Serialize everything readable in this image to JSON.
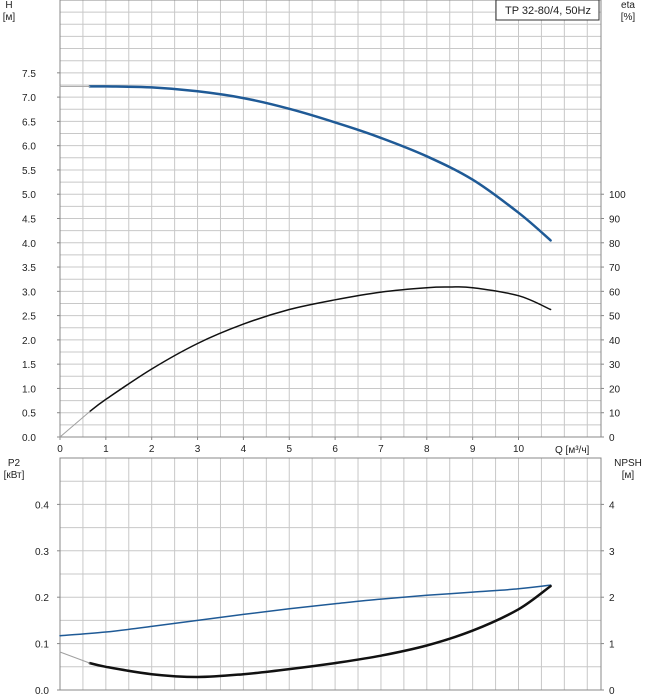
{
  "title": "TP 32-80/4, 50Hz",
  "colors": {
    "grid": "#c8c8c8",
    "axis": "#888888",
    "blue": "#1f5a96",
    "black": "#111111",
    "grey": "#a0a0a0"
  },
  "top_chart": {
    "left_axis": {
      "label": "H",
      "unit": "[м]",
      "ticks": [
        "0.0",
        "0.5",
        "1.0",
        "1.5",
        "2.0",
        "2.5",
        "3.0",
        "3.5",
        "4.0",
        "4.5",
        "5.0",
        "5.5",
        "6.0",
        "6.5",
        "7.0",
        "7.5"
      ]
    },
    "right_axis": {
      "label": "eta",
      "unit": "[%]",
      "ticks": [
        "0",
        "10",
        "20",
        "30",
        "40",
        "50",
        "60",
        "70",
        "80",
        "90",
        "100"
      ]
    },
    "x_axis": {
      "unit": "Q [м³/ч]",
      "ticks": [
        "0",
        "1",
        "2",
        "3",
        "4",
        "5",
        "6",
        "7",
        "8",
        "9",
        "10"
      ]
    }
  },
  "bottom_chart": {
    "left_axis": {
      "label": "P2",
      "unit": "[кВт]",
      "ticks": [
        "0.0",
        "0.1",
        "0.2",
        "0.3",
        "0.4"
      ]
    },
    "right_axis": {
      "label": "NPSH",
      "unit": "[м]",
      "ticks": [
        "0",
        "1",
        "2",
        "3",
        "4"
      ]
    }
  },
  "chart_data": [
    {
      "type": "line",
      "title": "TP 32-80/4, 50Hz",
      "xlabel": "Q [м³/ч]",
      "ylabel": "H [м]",
      "y2label": "eta [%]",
      "xlim": [
        0,
        11.8
      ],
      "ylim": [
        0,
        9.0
      ],
      "y2lim": [
        0,
        100
      ],
      "grid": true,
      "series": [
        {
          "name": "H",
          "axis": "left",
          "color": "#1f5a96",
          "x": [
            0.65,
            1,
            2,
            3,
            4,
            5,
            6,
            7,
            8,
            9,
            10,
            10.7
          ],
          "y": [
            7.22,
            7.22,
            7.2,
            7.12,
            6.98,
            6.76,
            6.48,
            6.16,
            5.78,
            5.3,
            4.62,
            4.05
          ]
        },
        {
          "name": "H (extrapolated)",
          "axis": "left",
          "color": "#a0a0a0",
          "x": [
            0,
            0.65
          ],
          "y": [
            7.22,
            7.22
          ]
        },
        {
          "name": "eta",
          "axis": "right",
          "color": "#111111",
          "x": [
            0.65,
            1,
            2,
            3,
            4,
            5,
            6,
            7,
            8,
            8.5,
            9,
            10,
            10.7
          ],
          "y": [
            10.5,
            15.5,
            28,
            38.5,
            46.5,
            52.5,
            56.5,
            59.7,
            61.5,
            61.8,
            61.5,
            58.2,
            52.5
          ]
        },
        {
          "name": "eta (extrapolated)",
          "axis": "right",
          "color": "#a0a0a0",
          "x": [
            0,
            0.65
          ],
          "y": [
            0,
            10.5
          ]
        }
      ]
    },
    {
      "type": "line",
      "xlabel": "Q [м³/ч]",
      "ylabel": "P2 [кВт]",
      "y2label": "NPSH [м]",
      "xlim": [
        0,
        11.8
      ],
      "ylim": [
        0,
        0.5
      ],
      "y2lim": [
        0,
        5
      ],
      "grid": true,
      "series": [
        {
          "name": "P2",
          "axis": "left",
          "color": "#1f5a96",
          "x": [
            0,
            1,
            2,
            3,
            4,
            5,
            6,
            7,
            8,
            9,
            10,
            10.7
          ],
          "y": [
            0.117,
            0.125,
            0.137,
            0.15,
            0.163,
            0.175,
            0.186,
            0.196,
            0.204,
            0.211,
            0.218,
            0.226
          ]
        },
        {
          "name": "NPSH",
          "axis": "right",
          "color": "#111111",
          "x": [
            0.65,
            1,
            2,
            3,
            4,
            5,
            6,
            7,
            8,
            9,
            10,
            10.7
          ],
          "y": [
            0.58,
            0.5,
            0.34,
            0.28,
            0.34,
            0.45,
            0.58,
            0.74,
            0.96,
            1.28,
            1.74,
            2.24
          ]
        },
        {
          "name": "NPSH (extrapolated)",
          "axis": "right",
          "color": "#a0a0a0",
          "x": [
            0,
            0.65
          ],
          "y": [
            0.82,
            0.58
          ]
        }
      ]
    }
  ]
}
